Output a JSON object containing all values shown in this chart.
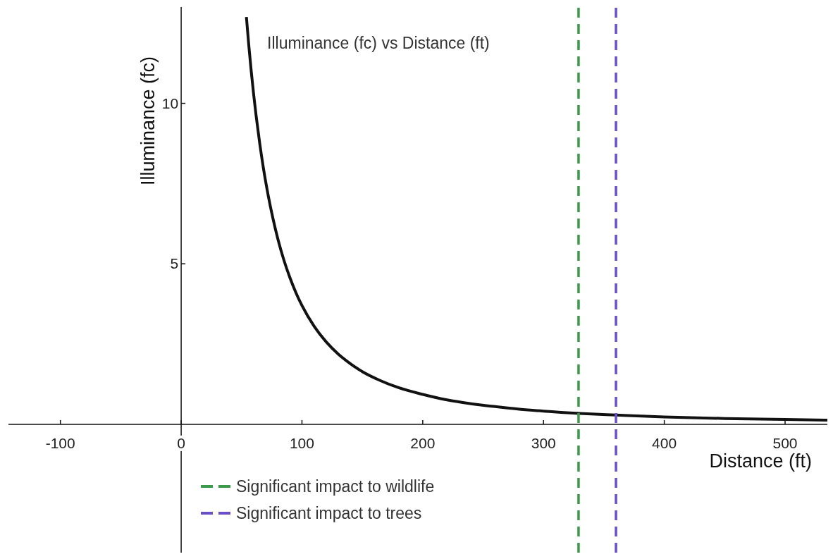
{
  "chart_data": {
    "type": "line",
    "title": "Illuminance (fc) vs Distance (ft)",
    "xlabel": "Distance (ft)",
    "ylabel": "Illuminance (fc)",
    "series": [
      {
        "color": "#111111",
        "x": [
          54,
          56,
          58,
          60,
          62,
          65,
          68,
          72,
          76,
          80,
          85,
          90,
          95,
          100,
          110,
          120,
          130,
          140,
          150,
          165,
          180,
          200,
          220,
          240,
          260,
          280,
          300,
          330,
          360,
          400,
          450,
          500,
          535
        ],
        "values": [
          12.69,
          11.8,
          11.0,
          10.28,
          9.63,
          8.76,
          8.0,
          7.14,
          6.41,
          5.78,
          5.12,
          4.57,
          4.1,
          3.7,
          3.06,
          2.57,
          2.19,
          1.89,
          1.64,
          1.36,
          1.14,
          0.93,
          0.76,
          0.64,
          0.55,
          0.47,
          0.41,
          0.34,
          0.29,
          0.23,
          0.18,
          0.15,
          0.13
        ]
      },
      {
        "name": "Significant impact to wildlife",
        "color": "#3a9a4a",
        "line_style": "dashed",
        "x": [
          329,
          329
        ],
        "values": [
          -4,
          13
        ]
      },
      {
        "name": "Significant impact to trees",
        "color": "#6a4fc8",
        "line_style": "dashed",
        "x": [
          360,
          360
        ],
        "values": [
          -4,
          13
        ]
      }
    ],
    "xlim": [
      -143,
      535
    ],
    "ylim": [
      -4,
      13
    ],
    "xticks": [
      -100,
      0,
      100,
      200,
      300,
      400,
      500
    ],
    "yticks": [
      5,
      10
    ],
    "legend": "bottom left",
    "grid": false,
    "marker": "none",
    "line_style": "solid"
  }
}
